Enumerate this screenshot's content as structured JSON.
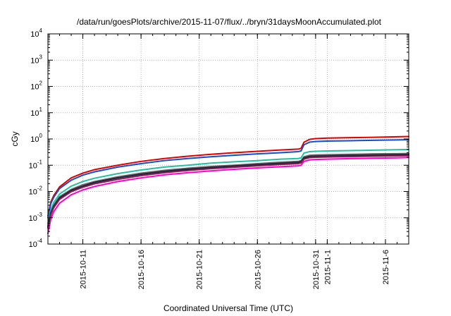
{
  "chart_data": {
    "type": "line",
    "title": "/data/run/goesPlots/archive/2015-11-07/flux/../bryn/31daysMoonAccumulated.plot",
    "xlabel": "Coordinated Universal Time (UTC)",
    "ylabel": "cGy",
    "yscale": "log",
    "ylim": [
      0.0001,
      10000
    ],
    "xlim": [
      "2015-10-08",
      "2015-11-08"
    ],
    "grid": true,
    "legend": "none",
    "x_ticks": [
      {
        "date": "2015-10-11",
        "label": "2015-10-11"
      },
      {
        "date": "2015-10-16",
        "label": "2015-10-16"
      },
      {
        "date": "2015-10-21",
        "label": "2015-10-21"
      },
      {
        "date": "2015-10-26",
        "label": "2015-10-26"
      },
      {
        "date": "2015-10-31",
        "label": "2015-10-31"
      },
      {
        "date": "2015-11-01",
        "label": "2015-11-1"
      },
      {
        "date": "2015-11-06",
        "label": "2015-11-6"
      }
    ],
    "y_ticks": [
      {
        "value": 0.0001,
        "base": "10",
        "exp": "-4"
      },
      {
        "value": 0.001,
        "base": "10",
        "exp": "-3"
      },
      {
        "value": 0.01,
        "base": "10",
        "exp": "-2"
      },
      {
        "value": 0.1,
        "base": "10",
        "exp": "-1"
      },
      {
        "value": 1,
        "base": "10",
        "exp": "0"
      },
      {
        "value": 10,
        "base": "10",
        "exp": "1"
      },
      {
        "value": 100,
        "base": "10",
        "exp": "2"
      },
      {
        "value": 1000,
        "base": "10",
        "exp": "3"
      },
      {
        "value": 10000,
        "base": "10",
        "exp": "4"
      }
    ],
    "series": [
      {
        "color": "#e00000",
        "x": [
          "2015-10-08",
          "2015-10-08 06:00",
          "2015-10-08 12:00",
          "2015-10-09",
          "2015-10-10",
          "2015-10-11",
          "2015-10-12",
          "2015-10-14",
          "2015-10-16",
          "2015-10-18",
          "2015-10-20",
          "2015-10-22",
          "2015-10-24",
          "2015-10-26",
          "2015-10-28",
          "2015-10-29 12:00",
          "2015-10-29 18:00",
          "2015-10-30",
          "2015-10-30 12:00",
          "2015-10-31",
          "2015-11-01",
          "2015-11-03",
          "2015-11-05",
          "2015-11-07",
          "2015-11-08"
        ],
        "values": [
          0.0012,
          0.004,
          0.007,
          0.015,
          0.033,
          0.05,
          0.068,
          0.1,
          0.14,
          0.18,
          0.22,
          0.26,
          0.3,
          0.34,
          0.38,
          0.41,
          0.44,
          0.75,
          0.97,
          1.03,
          1.08,
          1.12,
          1.16,
          1.21,
          1.24
        ]
      },
      {
        "color": "#1050d0",
        "x": [
          "2015-10-08",
          "2015-10-08 06:00",
          "2015-10-08 12:00",
          "2015-10-09",
          "2015-10-10",
          "2015-10-11",
          "2015-10-12",
          "2015-10-14",
          "2015-10-16",
          "2015-10-18",
          "2015-10-20",
          "2015-10-22",
          "2015-10-24",
          "2015-10-26",
          "2015-10-28",
          "2015-10-29 12:00",
          "2015-10-29 18:00",
          "2015-10-30",
          "2015-10-30 12:00",
          "2015-10-31",
          "2015-11-01",
          "2015-11-03",
          "2015-11-05",
          "2015-11-07",
          "2015-11-08"
        ],
        "values": [
          0.001,
          0.0035,
          0.006,
          0.013,
          0.027,
          0.042,
          0.056,
          0.085,
          0.115,
          0.15,
          0.18,
          0.21,
          0.24,
          0.27,
          0.3,
          0.33,
          0.35,
          0.6,
          0.76,
          0.8,
          0.83,
          0.86,
          0.89,
          0.92,
          0.94
        ]
      },
      {
        "color": "#20c0a0",
        "x": [
          "2015-10-08",
          "2015-10-08 06:00",
          "2015-10-08 12:00",
          "2015-10-09",
          "2015-10-10",
          "2015-10-11",
          "2015-10-12",
          "2015-10-14",
          "2015-10-16",
          "2015-10-18",
          "2015-10-20",
          "2015-10-22",
          "2015-10-24",
          "2015-10-26",
          "2015-10-28",
          "2015-10-29 12:00",
          "2015-10-29 18:00",
          "2015-10-30",
          "2015-10-30 12:00",
          "2015-10-31",
          "2015-11-01",
          "2015-11-03",
          "2015-11-05",
          "2015-11-07",
          "2015-11-08"
        ],
        "values": [
          0.0006,
          0.002,
          0.0038,
          0.008,
          0.016,
          0.024,
          0.032,
          0.048,
          0.066,
          0.085,
          0.1,
          0.12,
          0.135,
          0.15,
          0.17,
          0.18,
          0.19,
          0.29,
          0.33,
          0.34,
          0.35,
          0.36,
          0.375,
          0.39,
          0.4
        ]
      },
      {
        "color": "#606060",
        "x": [
          "2015-10-08",
          "2015-10-08 06:00",
          "2015-10-08 12:00",
          "2015-10-09",
          "2015-10-10",
          "2015-10-11",
          "2015-10-12",
          "2015-10-14",
          "2015-10-16",
          "2015-10-18",
          "2015-10-20",
          "2015-10-22",
          "2015-10-24",
          "2015-10-26",
          "2015-10-28",
          "2015-10-29 12:00",
          "2015-10-29 18:00",
          "2015-10-30",
          "2015-10-30 12:00",
          "2015-10-31",
          "2015-11-01",
          "2015-11-03",
          "2015-11-05",
          "2015-11-07",
          "2015-11-08"
        ],
        "values": [
          0.0005,
          0.0016,
          0.003,
          0.0063,
          0.012,
          0.018,
          0.024,
          0.036,
          0.05,
          0.064,
          0.077,
          0.09,
          0.1,
          0.115,
          0.13,
          0.14,
          0.15,
          0.21,
          0.24,
          0.245,
          0.25,
          0.26,
          0.27,
          0.275,
          0.28
        ]
      },
      {
        "color": "#202040",
        "x": [
          "2015-10-08",
          "2015-10-08 06:00",
          "2015-10-08 12:00",
          "2015-10-09",
          "2015-10-10",
          "2015-10-11",
          "2015-10-12",
          "2015-10-14",
          "2015-10-16",
          "2015-10-18",
          "2015-10-20",
          "2015-10-22",
          "2015-10-24",
          "2015-10-26",
          "2015-10-28",
          "2015-10-29 12:00",
          "2015-10-29 18:00",
          "2015-10-30",
          "2015-10-30 12:00",
          "2015-10-31",
          "2015-11-01",
          "2015-11-03",
          "2015-11-05",
          "2015-11-07",
          "2015-11-08"
        ],
        "values": [
          0.00045,
          0.0015,
          0.0027,
          0.0057,
          0.011,
          0.016,
          0.022,
          0.033,
          0.045,
          0.058,
          0.07,
          0.082,
          0.093,
          0.105,
          0.118,
          0.128,
          0.136,
          0.19,
          0.215,
          0.22,
          0.225,
          0.235,
          0.243,
          0.25,
          0.255
        ]
      },
      {
        "color": "#8a1a50",
        "x": [
          "2015-10-08",
          "2015-10-08 06:00",
          "2015-10-08 12:00",
          "2015-10-09",
          "2015-10-10",
          "2015-10-11",
          "2015-10-12",
          "2015-10-14",
          "2015-10-16",
          "2015-10-18",
          "2015-10-20",
          "2015-10-22",
          "2015-10-24",
          "2015-10-26",
          "2015-10-28",
          "2015-10-29 12:00",
          "2015-10-29 18:00",
          "2015-10-30",
          "2015-10-30 12:00",
          "2015-10-31",
          "2015-11-01",
          "2015-11-03",
          "2015-11-05",
          "2015-11-07",
          "2015-11-08"
        ],
        "values": [
          0.0004,
          0.0013,
          0.0024,
          0.005,
          0.0098,
          0.0145,
          0.0195,
          0.029,
          0.04,
          0.052,
          0.063,
          0.074,
          0.084,
          0.095,
          0.106,
          0.115,
          0.122,
          0.17,
          0.195,
          0.2,
          0.205,
          0.213,
          0.22,
          0.226,
          0.23
        ]
      },
      {
        "color": "#ff00cc",
        "x": [
          "2015-10-08",
          "2015-10-08 06:00",
          "2015-10-08 12:00",
          "2015-10-09",
          "2015-10-10",
          "2015-10-11",
          "2015-10-12",
          "2015-10-14",
          "2015-10-16",
          "2015-10-18",
          "2015-10-20",
          "2015-10-22",
          "2015-10-24",
          "2015-10-26",
          "2015-10-28",
          "2015-10-29 12:00",
          "2015-10-29 18:00",
          "2015-10-30",
          "2015-10-30 12:00",
          "2015-10-31",
          "2015-11-01",
          "2015-11-03",
          "2015-11-05",
          "2015-11-07",
          "2015-11-08"
        ],
        "values": [
          0.00025,
          0.0009,
          0.0017,
          0.0036,
          0.0075,
          0.0115,
          0.0155,
          0.024,
          0.033,
          0.043,
          0.052,
          0.061,
          0.07,
          0.079,
          0.088,
          0.095,
          0.1,
          0.14,
          0.16,
          0.165,
          0.17,
          0.178,
          0.185,
          0.192,
          0.197
        ]
      }
    ]
  }
}
